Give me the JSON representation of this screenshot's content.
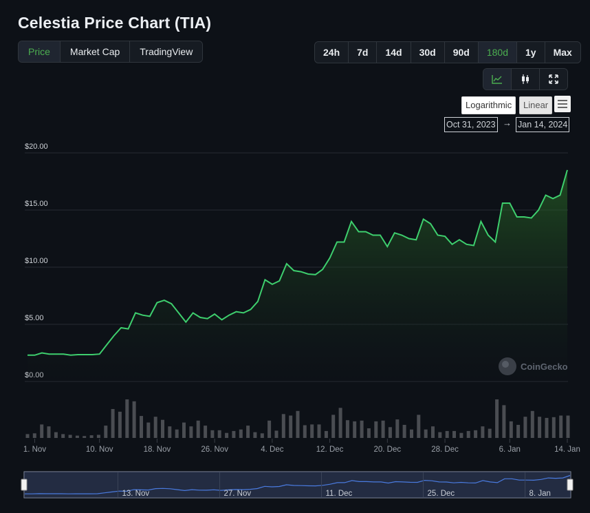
{
  "title": "Celestia Price Chart (TIA)",
  "chart_types": {
    "items": [
      "Price",
      "Market Cap",
      "TradingView"
    ],
    "active": "Price"
  },
  "ranges": {
    "items": [
      "24h",
      "7d",
      "14d",
      "30d",
      "90d",
      "180d",
      "1y",
      "Max"
    ],
    "active": "180d"
  },
  "view_icons": [
    "line-chart-icon",
    "candlestick-icon",
    "fullscreen-icon"
  ],
  "scale": {
    "log_label": "Logarithmic",
    "linear_label": "Linear"
  },
  "date_range": {
    "from": "Oct 31, 2023",
    "arrow": "→",
    "to": "Jan 14, 2024"
  },
  "watermark": "CoinGecko",
  "colors": {
    "line": "#3ecf6e",
    "active_text": "#4caf50",
    "volume": "#4a4d52",
    "navigator_line": "#4a7be0"
  },
  "chart_data": {
    "type": "area",
    "y_axis": {
      "min": 0,
      "max": 20,
      "ticks": [
        "$0.00",
        "$5.00",
        "$10.00",
        "$15.00",
        "$20.00"
      ],
      "tick_values": [
        0,
        5,
        10,
        15,
        20
      ]
    },
    "x_ticks": [
      "1. Nov",
      "10. Nov",
      "18. Nov",
      "26. Nov",
      "4. Dec",
      "12. Dec",
      "20. Dec",
      "28. Dec",
      "6. Jan",
      "14. Jan"
    ],
    "x_tick_days": [
      1,
      10,
      18,
      26,
      34,
      42,
      50,
      58,
      67,
      75
    ],
    "price_days": [
      0,
      1,
      2,
      3,
      4,
      5,
      6,
      7,
      8,
      9,
      10,
      11,
      12,
      13,
      14,
      15,
      16,
      17,
      18,
      19,
      20,
      21,
      22,
      23,
      24,
      25,
      26,
      27,
      28,
      29,
      30,
      31,
      32,
      33,
      34,
      35,
      36,
      37,
      38,
      39,
      40,
      41,
      42,
      43,
      44,
      45,
      46,
      47,
      48,
      49,
      50,
      51,
      52,
      53,
      54,
      55,
      56,
      57,
      58,
      59,
      60,
      61,
      62,
      63,
      64,
      65,
      66,
      67,
      68,
      69,
      70,
      71,
      72,
      73,
      74,
      75
    ],
    "price": [
      2.3,
      2.3,
      2.5,
      2.4,
      2.4,
      2.4,
      2.3,
      2.35,
      2.35,
      2.35,
      2.4,
      3.2,
      4.0,
      4.7,
      4.6,
      6.0,
      5.8,
      5.7,
      6.9,
      7.1,
      6.8,
      6.0,
      5.2,
      6.0,
      5.6,
      5.5,
      5.9,
      5.4,
      5.8,
      6.1,
      6.0,
      6.3,
      7.0,
      8.9,
      8.5,
      8.8,
      10.3,
      9.7,
      9.6,
      9.4,
      9.35,
      9.8,
      10.8,
      12.2,
      12.2,
      14.0,
      13.1,
      13.1,
      12.8,
      12.8,
      11.8,
      13.0,
      12.8,
      12.5,
      12.4,
      14.2,
      13.8,
      12.8,
      12.7,
      12.0,
      12.4,
      12.0,
      11.9,
      14.0,
      12.8,
      12.2,
      15.6,
      15.6,
      14.4,
      14.4,
      14.3,
      15.0,
      16.3,
      16.0,
      16.3,
      18.5
    ],
    "volume_days": [
      0,
      1,
      2,
      3,
      4,
      5,
      6,
      7,
      8,
      9,
      10,
      11,
      12,
      13,
      14,
      15,
      16,
      17,
      18,
      19,
      20,
      21,
      22,
      23,
      24,
      25,
      26,
      27,
      28,
      29,
      30,
      31,
      32,
      33,
      34,
      35,
      36,
      37,
      38,
      39,
      40,
      41,
      42,
      43,
      44,
      45,
      46,
      47,
      48,
      49,
      50,
      51,
      52,
      53,
      54,
      55,
      56,
      57,
      58,
      59,
      60,
      61,
      62,
      63,
      64,
      65,
      66,
      67,
      68,
      69,
      70,
      71,
      72,
      73,
      74,
      75,
      76
    ],
    "volume_rel": [
      0.1,
      0.12,
      0.35,
      0.3,
      0.15,
      0.1,
      0.08,
      0.06,
      0.05,
      0.07,
      0.08,
      0.32,
      0.75,
      0.68,
      1.0,
      0.95,
      0.57,
      0.4,
      0.55,
      0.47,
      0.3,
      0.22,
      0.4,
      0.3,
      0.45,
      0.32,
      0.2,
      0.2,
      0.13,
      0.18,
      0.22,
      0.32,
      0.15,
      0.12,
      0.45,
      0.19,
      0.62,
      0.58,
      0.7,
      0.33,
      0.35,
      0.35,
      0.18,
      0.6,
      0.78,
      0.46,
      0.43,
      0.45,
      0.25,
      0.43,
      0.45,
      0.28,
      0.48,
      0.34,
      0.22,
      0.6,
      0.22,
      0.3,
      0.15,
      0.18,
      0.18,
      0.13,
      0.18,
      0.2,
      0.3,
      0.24,
      1.0,
      0.85,
      0.43,
      0.34,
      0.55,
      0.7,
      0.55,
      0.52,
      0.54,
      0.58,
      0.58
    ]
  }
}
